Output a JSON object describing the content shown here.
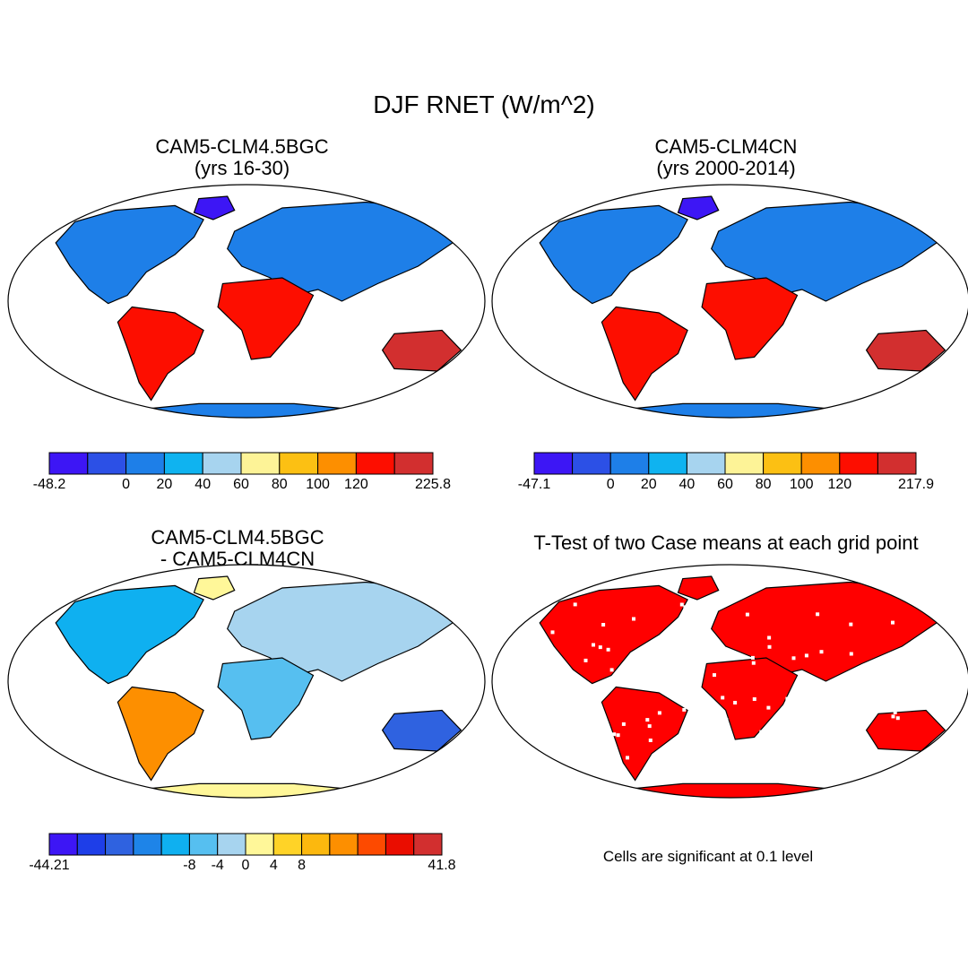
{
  "figure": {
    "title": "DJF RNET (W/m^2)",
    "note": "Cells are significant at 0.1 level"
  },
  "colors": {
    "abs_scale": [
      "#3d16f5",
      "#2c50e6",
      "#1e7fe8",
      "#0fb3f0",
      "#a7d4ef",
      "#fdf397",
      "#fcc013",
      "#fd8f00",
      "#fd0e00",
      "#d22f2f"
    ],
    "diff_scale": [
      "#3d16f5",
      "#1e3ee8",
      "#2f62e0",
      "#1e84e8",
      "#0fb0f0",
      "#56bff0",
      "#a7d4ef",
      "#fff799",
      "#ffd327",
      "#fcb80e",
      "#fd8f00",
      "#fd4a00",
      "#ea0d00",
      "#d22f2f"
    ],
    "sig": "#ff0000",
    "outline": "#000000"
  },
  "chart_data": [
    {
      "type": "heatmap",
      "panel": "p1",
      "title": "CAM5-CLM4.5BGC",
      "subtitle": "(yrs 16-30)",
      "colorbar": {
        "min": "-48.2",
        "max": "225.8",
        "ticks": [
          "0",
          "20",
          "40",
          "60",
          "80",
          "100",
          "120"
        ],
        "levels": 10
      }
    },
    {
      "type": "heatmap",
      "panel": "p2",
      "title": "CAM5-CLM4CN",
      "subtitle": "(yrs 2000-2014)",
      "colorbar": {
        "min": "-47.1",
        "max": "217.9",
        "ticks": [
          "0",
          "20",
          "40",
          "60",
          "80",
          "100",
          "120"
        ],
        "levels": 10
      }
    },
    {
      "type": "heatmap",
      "panel": "p3",
      "title": "CAM5-CLM4.5BGC",
      "subtitle": "- CAM5-CLM4CN",
      "colorbar": {
        "min": "-44.21",
        "max": "41.8",
        "ticks": [
          "-8",
          "-4",
          "0",
          "4",
          "8"
        ],
        "levels": 14
      }
    },
    {
      "type": "heatmap",
      "panel": "p4",
      "title": "T-Test of two Case means at each grid point",
      "colorbar": null
    }
  ]
}
